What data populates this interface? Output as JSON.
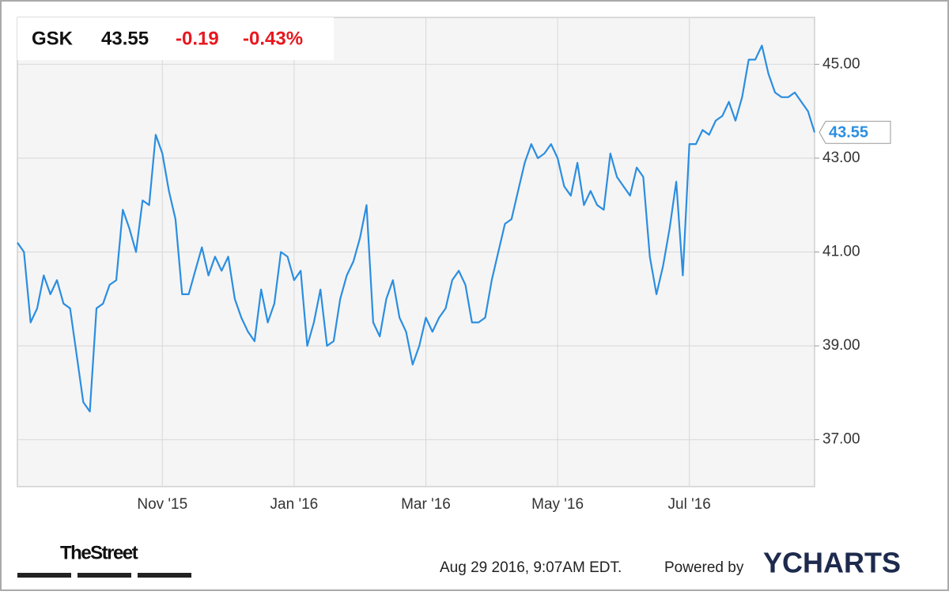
{
  "header": {
    "ticker": "GSK",
    "price": "43.55",
    "change": "-0.19",
    "change_pct": "-0.43%"
  },
  "chart_data": {
    "type": "line",
    "color": "#2b8ee0",
    "categories": [
      null,
      null,
      null,
      null,
      null,
      null,
      null,
      null,
      null,
      null,
      null,
      null,
      null,
      null,
      null,
      null,
      null,
      null,
      null,
      null,
      null,
      null,
      "Nov '15",
      null,
      null,
      null,
      null,
      null,
      null,
      null,
      null,
      null,
      null,
      null,
      null,
      null,
      null,
      null,
      null,
      null,
      null,
      null,
      "Jan '16",
      null,
      null,
      null,
      null,
      null,
      null,
      null,
      null,
      null,
      null,
      null,
      null,
      null,
      null,
      null,
      null,
      null,
      null,
      null,
      "Mar '16",
      null,
      null,
      null,
      null,
      null,
      null,
      null,
      null,
      null,
      null,
      null,
      null,
      null,
      null,
      null,
      null,
      null,
      null,
      null,
      "May '16",
      null,
      null,
      null,
      null,
      null,
      null,
      null,
      null,
      null,
      null,
      null,
      null,
      null,
      null,
      null,
      null,
      null,
      null,
      null,
      "Jul '16",
      null,
      null,
      null,
      null,
      null,
      null,
      null,
      null,
      null,
      null,
      null,
      null,
      null,
      null,
      null,
      null,
      null,
      null,
      null
    ],
    "values": [
      41.2,
      41.0,
      39.5,
      39.8,
      40.5,
      40.1,
      40.4,
      39.9,
      39.8,
      38.8,
      37.8,
      37.6,
      39.8,
      39.9,
      40.3,
      40.4,
      41.9,
      41.5,
      41.0,
      42.1,
      42.0,
      43.5,
      43.1,
      42.3,
      41.7,
      40.1,
      40.1,
      40.6,
      41.1,
      40.5,
      40.9,
      40.6,
      40.9,
      40.0,
      39.6,
      39.3,
      39.1,
      40.2,
      39.5,
      39.9,
      41.0,
      40.9,
      40.4,
      40.6,
      39.0,
      39.5,
      40.2,
      39.0,
      39.1,
      40.0,
      40.5,
      40.8,
      41.3,
      42.0,
      39.5,
      39.2,
      40.0,
      40.4,
      39.6,
      39.3,
      38.6,
      39.0,
      39.6,
      39.3,
      39.6,
      39.8,
      40.4,
      40.6,
      40.3,
      39.5,
      39.5,
      39.6,
      40.4,
      41.0,
      41.6,
      41.7,
      42.3,
      42.9,
      43.3,
      43.0,
      43.1,
      43.3,
      43.0,
      42.4,
      42.2,
      42.9,
      42.0,
      42.3,
      42.0,
      41.9,
      43.1,
      42.6,
      42.4,
      42.2,
      42.8,
      42.6,
      40.9,
      40.1,
      40.7,
      41.5,
      42.5,
      40.5,
      43.3,
      43.3,
      43.6,
      43.5,
      43.8,
      43.9,
      44.2,
      43.8,
      44.3,
      45.1,
      45.1,
      45.4,
      44.8,
      44.4,
      44.3,
      44.3,
      44.4,
      44.2,
      44.0,
      43.55
    ],
    "ylim": [
      36,
      46
    ],
    "yticks": [
      {
        "value": 37,
        "label": "37.00"
      },
      {
        "value": 39,
        "label": "39.00"
      },
      {
        "value": 41,
        "label": "41.00"
      },
      {
        "value": 43,
        "label": "43.00"
      },
      {
        "value": 45,
        "label": "45.00"
      }
    ],
    "grid": true
  },
  "footer": {
    "brand": "TheStreet",
    "timestamp": "Aug 29 2016, 9:07AM EDT.",
    "powered_by": "Powered by",
    "logo": "YCHARTS"
  }
}
